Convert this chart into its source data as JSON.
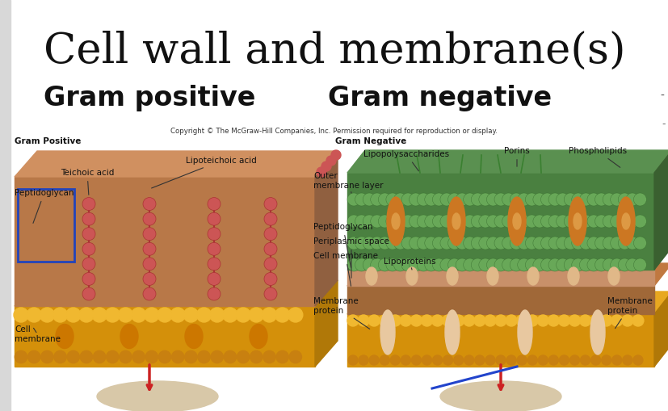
{
  "title": "Cell wall and membrane(s)",
  "subtitle_left": "Gram positive",
  "subtitle_right": "Gram negative",
  "title_fontsize": 38,
  "subtitle_fontsize": 24,
  "title_color": "#111111",
  "subtitle_color": "#111111",
  "slide_bg": "#ffffff",
  "border_color": "#c8c8c8",
  "copyright_text": "Copyright © The McGraw-Hill Companies, Inc. Permission required for reproduction or display.",
  "gram_positive_label": "Gram Positive",
  "gram_negative_label": "Gram Negative",
  "label_fontsize": 7,
  "diagram_bg": "#f5f5f5"
}
